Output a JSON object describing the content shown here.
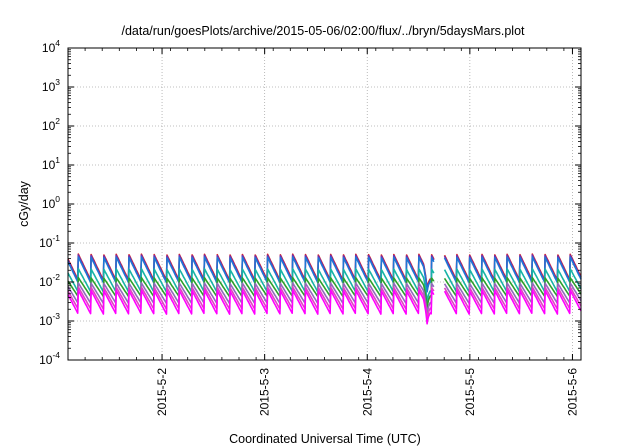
{
  "chart_data": {
    "type": "line",
    "title": "/data/run/goesPlots/archive/2015-05-06/02:00/flux/../bryn/5daysMars.plot",
    "xlabel": "Coordinated Universal Time (UTC)",
    "ylabel": "cGy/day",
    "y_scale": "log",
    "ylim": [
      0.0001,
      10000
    ],
    "y_ticks": [
      {
        "value": 0.0001,
        "exp": "-4"
      },
      {
        "value": 0.001,
        "exp": "-3"
      },
      {
        "value": 0.01,
        "exp": "-2"
      },
      {
        "value": 0.1,
        "exp": "-1"
      },
      {
        "value": 1,
        "exp": "0"
      },
      {
        "value": 10,
        "exp": "1"
      },
      {
        "value": 100,
        "exp": "2"
      },
      {
        "value": 1000,
        "exp": "3"
      },
      {
        "value": 10000,
        "exp": "4"
      }
    ],
    "y_tick_base": "10",
    "xlim": [
      "2015-05-01T02:00",
      "2015-05-06T02:00"
    ],
    "x_ticks": [
      {
        "date": "2015-05-02",
        "label": "2015-5-2"
      },
      {
        "date": "2015-05-03",
        "label": "2015-5-3"
      },
      {
        "date": "2015-05-04",
        "label": "2015-5-4"
      },
      {
        "date": "2015-05-05",
        "label": "2015-5-5"
      },
      {
        "date": "2015-05-06",
        "label": "2015-5-6"
      }
    ],
    "grid": true,
    "legend": "none",
    "pattern": {
      "period_hours": 2.95,
      "dip": {
        "time": "2015-05-04T14:00",
        "factor": 0.35
      },
      "gap": {
        "start": "2015-05-04T15:40",
        "end": "2015-05-04T18:00"
      }
    },
    "series": [
      {
        "color": "#d62728",
        "peak": 0.052,
        "trough": 0.011
      },
      {
        "color": "#6a2fb6",
        "peak": 0.049,
        "trough": 0.01
      },
      {
        "color": "#1f77d4",
        "peak": 0.044,
        "trough": 0.0095
      },
      {
        "color": "#17b3a6",
        "peak": 0.022,
        "trough": 0.0055
      },
      {
        "color": "#2ca02c",
        "peak": 0.013,
        "trough": 0.0042
      },
      {
        "color": "#9467bd",
        "peak": 0.0095,
        "trough": 0.0028
      },
      {
        "color": "#e044c4",
        "peak": 0.0075,
        "trough": 0.002
      },
      {
        "color": "#ff00ff",
        "peak": 0.0062,
        "trough": 0.0015
      }
    ]
  }
}
